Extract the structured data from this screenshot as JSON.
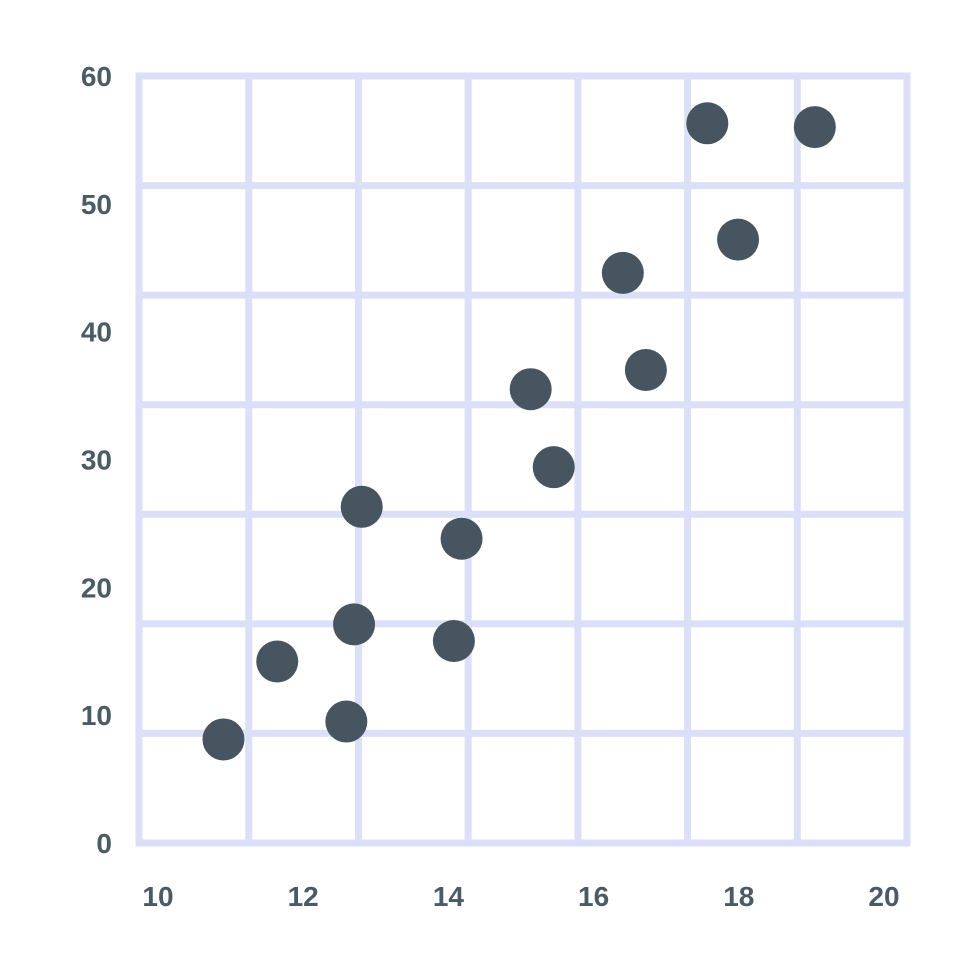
{
  "colors": {
    "background": "#ffffff",
    "grid": "#dcdff8",
    "point": "#46555f",
    "label": "#4a5a66"
  },
  "chart_data": {
    "type": "scatter",
    "title": "",
    "xlabel": "",
    "ylabel": "",
    "xlim": [
      10,
      20
    ],
    "ylim": [
      0,
      60
    ],
    "grid": true,
    "x_tick_labels": [
      "10",
      "12",
      "14",
      "16",
      "18",
      "20"
    ],
    "y_tick_labels": [
      "0",
      "10",
      "20",
      "30",
      "40",
      "50",
      "60"
    ],
    "grid_columns": 7,
    "grid_rows": 7,
    "points": [
      {
        "x": 11.1,
        "y": 8.1
      },
      {
        "x": 11.8,
        "y": 14.2
      },
      {
        "x": 12.7,
        "y": 9.5
      },
      {
        "x": 12.8,
        "y": 17.1
      },
      {
        "x": 12.9,
        "y": 26.3
      },
      {
        "x": 14.1,
        "y": 15.8
      },
      {
        "x": 14.2,
        "y": 23.8
      },
      {
        "x": 15.1,
        "y": 35.5
      },
      {
        "x": 15.4,
        "y": 29.4
      },
      {
        "x": 16.3,
        "y": 44.6
      },
      {
        "x": 16.6,
        "y": 37.0
      },
      {
        "x": 17.4,
        "y": 56.3
      },
      {
        "x": 17.8,
        "y": 47.2
      },
      {
        "x": 18.8,
        "y": 56.0
      }
    ]
  }
}
